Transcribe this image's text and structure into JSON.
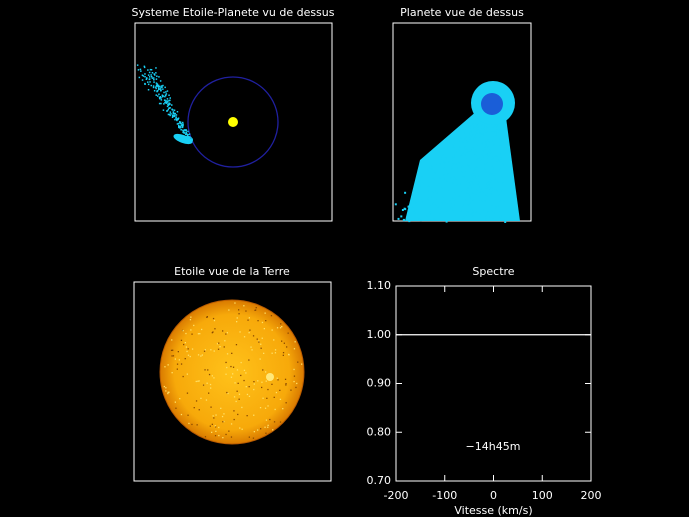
{
  "panels": [
    {
      "title": "Systeme Etoile-Planete vu de dessus"
    },
    {
      "title": "Planete vue de dessus"
    },
    {
      "title": "Etoile vue de la Terre"
    }
  ],
  "chart_data": {
    "type": "line",
    "title": "Spectre",
    "x_label": "Vitesse (km/s)",
    "x": [
      -200,
      200
    ],
    "series": [
      {
        "color": "#ffffff",
        "values": [
          1,
          1
        ]
      }
    ],
    "xlim": [
      -200,
      200
    ],
    "xticks": [
      -200,
      -100,
      0,
      100,
      200
    ],
    "ylim": [
      0.7,
      1.1
    ],
    "yticks": [
      {
        "value": 0.7,
        "label": "0.70"
      },
      {
        "value": 0.8,
        "label": "0.80"
      },
      {
        "value": 0.9,
        "label": "0.90"
      },
      {
        "value": 1,
        "label": "1.00"
      },
      {
        "value": 1.1,
        "label": "1.10"
      }
    ],
    "annotation": "−14h45m"
  }
}
